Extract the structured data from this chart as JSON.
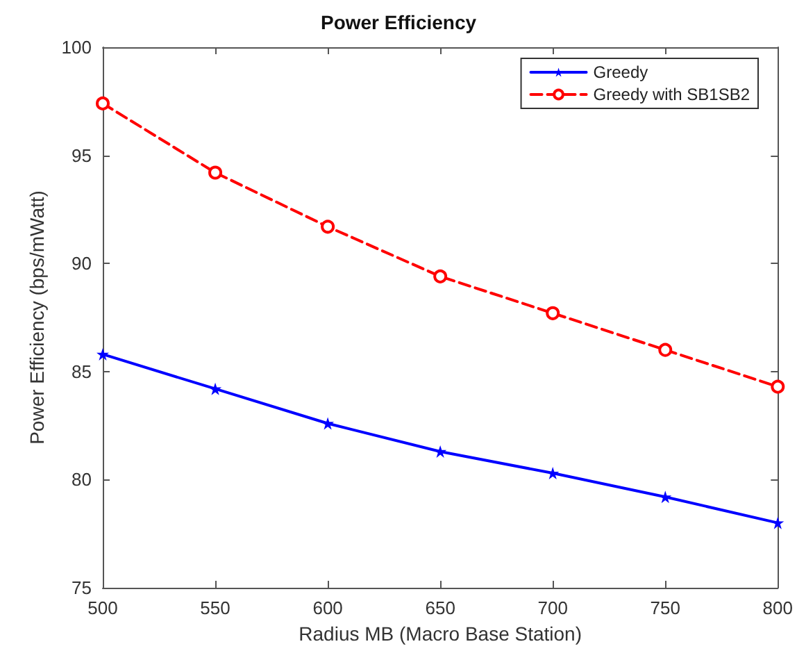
{
  "chart_data": {
    "type": "line",
    "title": "Power Efficiency",
    "xlabel": "Radius MB (Macro Base Station)",
    "ylabel": "Power Efficiency (bps/mWatt)",
    "x": [
      500,
      550,
      600,
      650,
      700,
      750,
      800
    ],
    "series": [
      {
        "name": "Greedy",
        "color": "#0000ff",
        "values": [
          85.8,
          84.2,
          82.6,
          81.3,
          80.3,
          79.2,
          78.0
        ],
        "marker": "star",
        "line_style": "solid"
      },
      {
        "name": "Greedy with SB1SB2",
        "color": "#ff0000",
        "values": [
          97.4,
          94.2,
          91.7,
          89.4,
          87.7,
          86.0,
          84.3
        ],
        "marker": "circle",
        "line_style": "dashed"
      }
    ],
    "xlim": [
      500,
      800
    ],
    "xticks": [
      500,
      550,
      600,
      650,
      700,
      750,
      800
    ],
    "ylim": [
      75,
      100
    ],
    "yticks": [
      75,
      80,
      85,
      90,
      95,
      100
    ],
    "grid": false,
    "legend": "top right"
  }
}
